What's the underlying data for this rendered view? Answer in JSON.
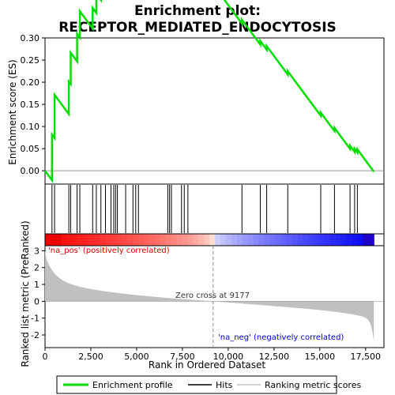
{
  "chart_data": {
    "type": "line",
    "title_line1": "Enrichment plot:",
    "title_line2": "RECEPTOR_MEDIATED_ENDOCYTOSIS",
    "xlabel": "Rank in Ordered Dataset",
    "xlim": [
      0,
      18500
    ],
    "x_ticks": [
      0,
      2500,
      5000,
      7500,
      10000,
      12500,
      15000,
      17500
    ],
    "x_tick_labels": [
      "0",
      "2,500",
      "5,000",
      "7,500",
      "10,000",
      "12,500",
      "15,000",
      "17,500"
    ],
    "top_panel": {
      "ylabel": "Enrichment score (ES)",
      "ylim": [
        -0.03,
        0.3
      ],
      "y_ticks": [
        0.0,
        0.05,
        0.1,
        0.15,
        0.2,
        0.25,
        0.3
      ],
      "y_tick_labels": [
        "0.00",
        "0.05",
        "0.10",
        "0.15",
        "0.20",
        "0.25",
        "0.30"
      ],
      "line_color": "#00dd00",
      "hits": [
        380,
        520,
        1300,
        1400,
        1750,
        1900,
        2600,
        2800,
        3050,
        3300,
        3600,
        3750,
        3850,
        3950,
        4400,
        4800,
        4950,
        5100,
        6700,
        6800,
        6900,
        7450,
        7600,
        7800,
        10750,
        11750,
        12100,
        13250,
        15050,
        15800,
        16650,
        16900,
        17050
      ]
    },
    "bottom_panel": {
      "ylabel": "Ranked list metric (PreRanked)",
      "ylim": [
        -2.75,
        3.3
      ],
      "y_ticks": [
        -2,
        -1,
        0,
        1,
        2,
        3
      ],
      "y_tick_labels": [
        "-2",
        "-1",
        "0",
        "1",
        "2",
        "3"
      ],
      "fill_color": "#c0c0c0",
      "zero_cross": 9177,
      "zero_cross_label": "Zero cross at 9177",
      "pos_label": "'na_pos' (positively correlated)",
      "neg_label": "'na_neg' (negatively correlated)",
      "pos_label_color": "#dd0000",
      "neg_label_color": "#0000cc"
    },
    "n_genes": 17950,
    "legend": {
      "placement": "bottom",
      "entries": [
        "Enrichment profile",
        "Hits",
        "Ranking metric scores"
      ]
    }
  }
}
